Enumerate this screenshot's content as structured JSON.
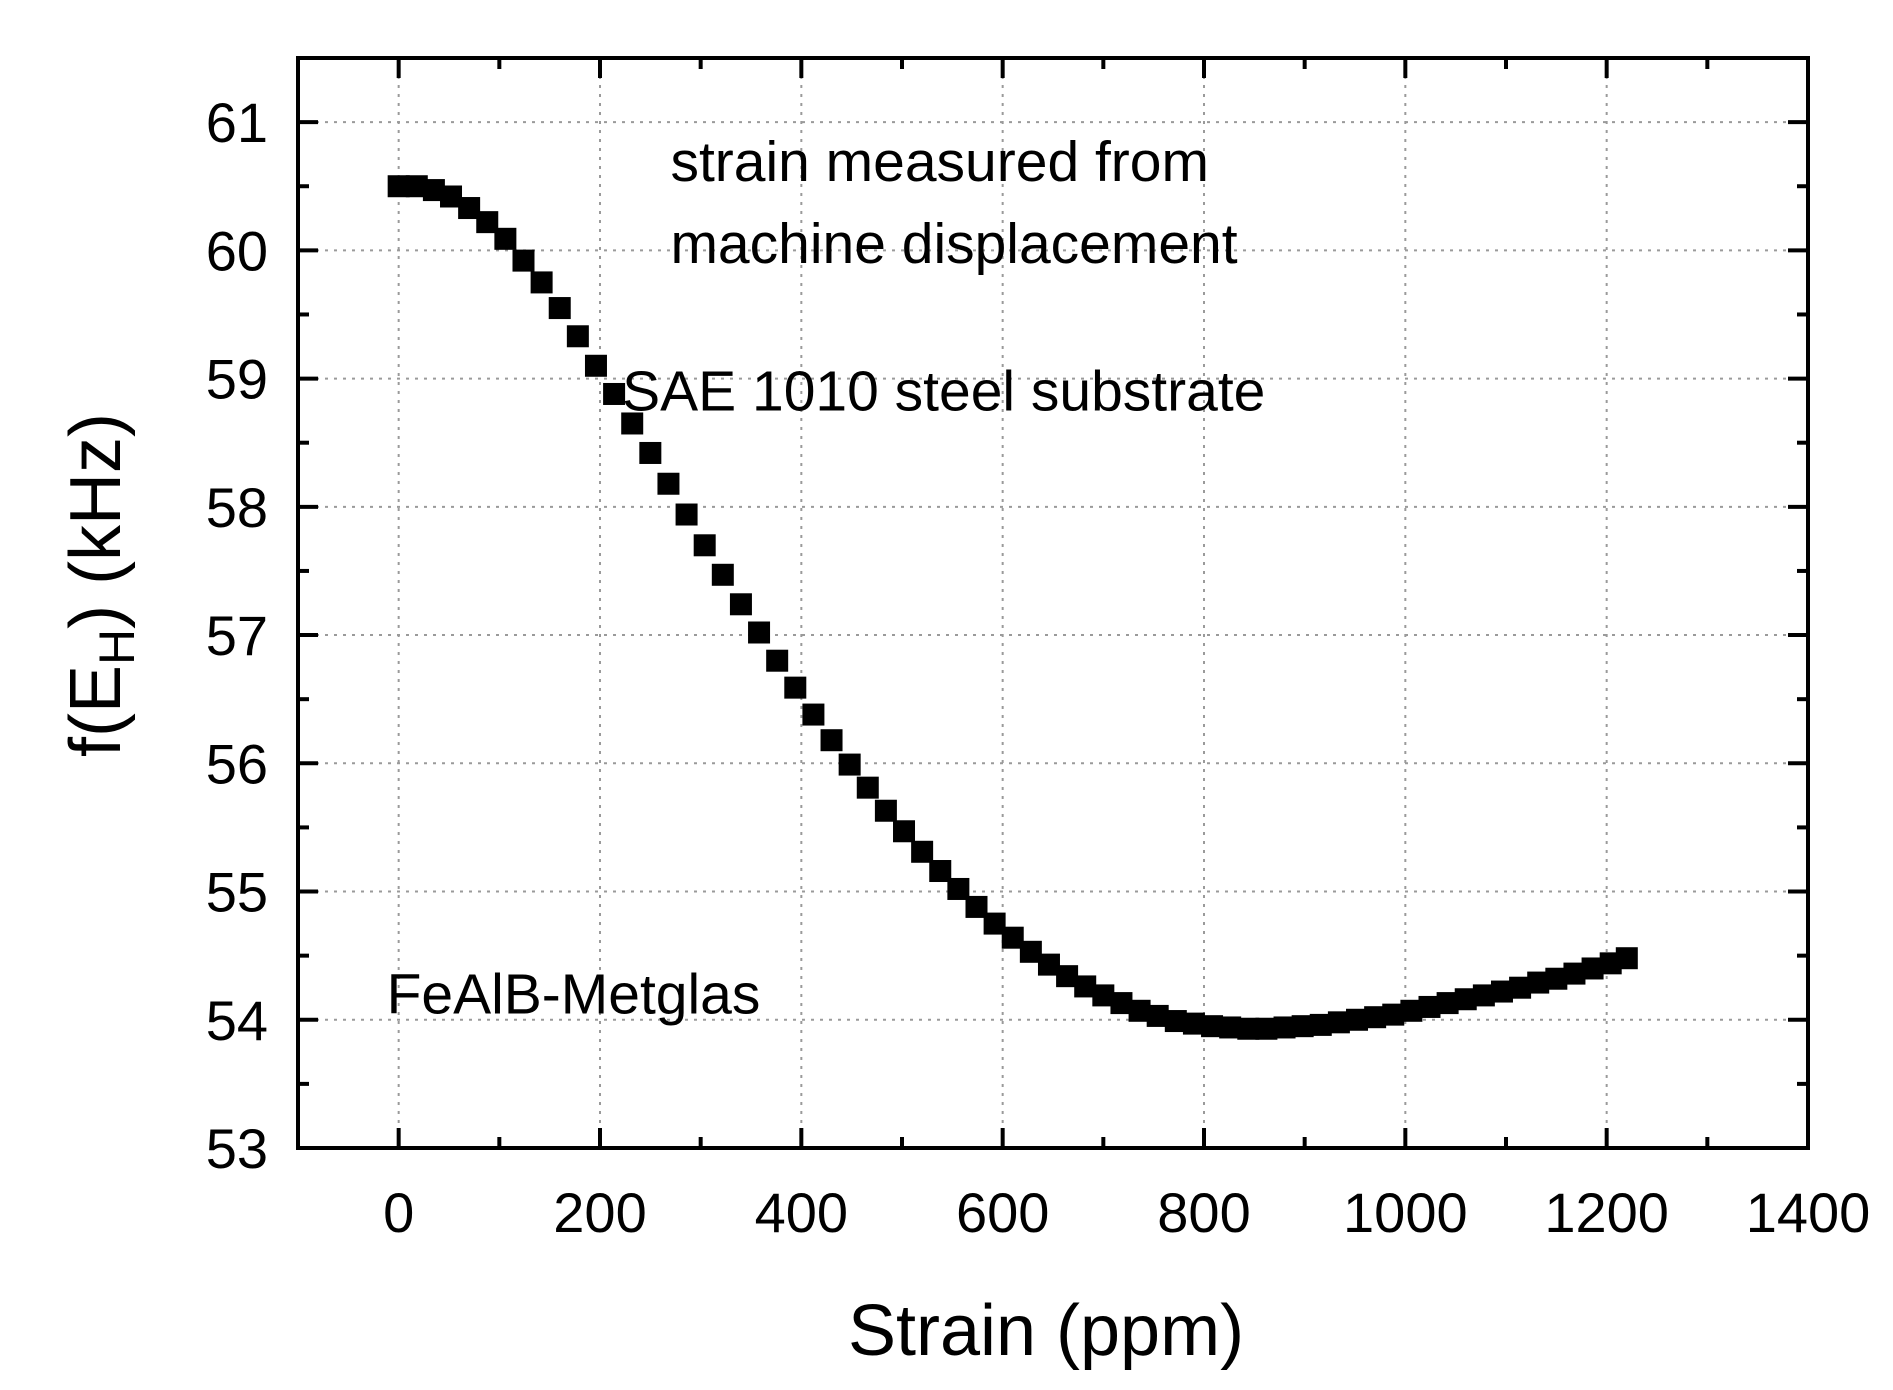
{
  "chart_data": {
    "type": "scatter",
    "xlabel": "Strain (ppm)",
    "ylabel_main": "f(E",
    "ylabel_sub": "H",
    "ylabel_tail": ") (kHz)",
    "xlim": [
      -100,
      1400
    ],
    "ylim": [
      53,
      61.5
    ],
    "xticks": [
      0,
      200,
      400,
      600,
      800,
      1000,
      1200,
      1400
    ],
    "xtick_labels": [
      "0",
      "200",
      "400",
      "600",
      "800",
      "1000",
      "1200",
      "1400"
    ],
    "yticks": [
      53,
      54,
      55,
      56,
      57,
      58,
      59,
      60,
      61
    ],
    "ytick_labels": [
      "53",
      "54",
      "55",
      "56",
      "57",
      "58",
      "59",
      "60",
      "61"
    ],
    "grid": true,
    "annotations": [
      {
        "text": "strain measured from",
        "x": 270,
        "y": 60.54
      },
      {
        "text": "machine displacement",
        "x": 270,
        "y": 59.9
      },
      {
        "text": "SAE 1010 steel substrate",
        "x": 222,
        "y": 58.75
      },
      {
        "text": "FeAlB-Metglas",
        "x": -12,
        "y": 54.05
      }
    ],
    "series": [
      {
        "name": "FeAlB-Metglas",
        "marker": "square",
        "color": "#000000",
        "x": [
          0,
          18,
          35,
          52,
          70,
          88,
          106,
          124,
          142,
          160,
          178,
          196,
          214,
          232,
          250,
          268,
          286,
          304,
          322,
          340,
          358,
          376,
          394,
          412,
          430,
          448,
          466,
          484,
          502,
          520,
          538,
          556,
          574,
          592,
          610,
          628,
          646,
          664,
          682,
          700,
          718,
          736,
          754,
          772,
          790,
          808,
          826,
          844,
          862,
          880,
          898,
          916,
          934,
          952,
          970,
          988,
          1006,
          1024,
          1042,
          1060,
          1078,
          1096,
          1114,
          1132,
          1150,
          1168,
          1186,
          1204,
          1220
        ],
        "y": [
          60.5,
          60.5,
          60.47,
          60.42,
          60.33,
          60.22,
          60.09,
          59.92,
          59.75,
          59.55,
          59.33,
          59.1,
          58.88,
          58.65,
          58.42,
          58.18,
          57.94,
          57.7,
          57.47,
          57.24,
          57.02,
          56.8,
          56.59,
          56.38,
          56.18,
          55.99,
          55.81,
          55.63,
          55.47,
          55.31,
          55.16,
          55.02,
          54.88,
          54.75,
          54.64,
          54.53,
          54.43,
          54.34,
          54.26,
          54.19,
          54.13,
          54.07,
          54.03,
          53.99,
          53.97,
          53.95,
          53.94,
          53.93,
          53.93,
          53.94,
          53.95,
          53.96,
          53.98,
          54.0,
          54.02,
          54.04,
          54.07,
          54.1,
          54.13,
          54.16,
          54.19,
          54.22,
          54.25,
          54.29,
          54.32,
          54.36,
          54.4,
          54.44,
          54.48
        ]
      }
    ]
  }
}
